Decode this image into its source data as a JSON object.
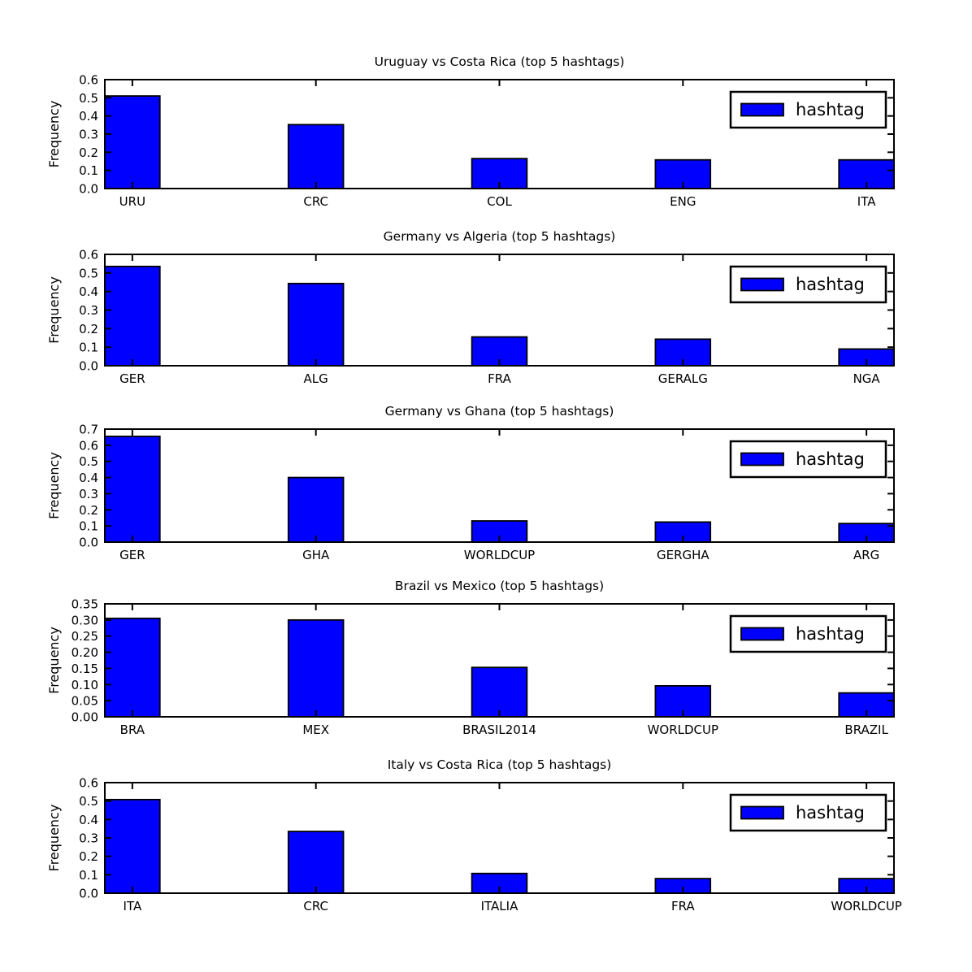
{
  "figure": {
    "background": "#ffffff",
    "bar_color": "#0000ff",
    "edge_color": "#000000"
  },
  "chart_data": [
    {
      "type": "bar",
      "title": "Uruguay vs Costa Rica (top 5 hashtags)",
      "categories": [
        "URU",
        "CRC",
        "COL",
        "ENG",
        "ITA"
      ],
      "values": [
        0.51,
        0.352,
        0.165,
        0.158,
        0.158
      ],
      "xlabel": "",
      "ylabel": "Frequency",
      "ylim": [
        0,
        0.6
      ],
      "yticks": [
        0.0,
        0.1,
        0.2,
        0.3,
        0.4,
        0.5,
        0.6
      ],
      "ytick_labels": [
        "0.0",
        "0.1",
        "0.2",
        "0.3",
        "0.4",
        "0.5",
        "0.6"
      ],
      "legend": {
        "label": "hashtag",
        "position": "upper right"
      },
      "grid": false
    },
    {
      "type": "bar",
      "title": "Germany vs Algeria (top 5 hashtags)",
      "categories": [
        "GER",
        "ALG",
        "FRA",
        "GERALG",
        "NGA"
      ],
      "values": [
        0.535,
        0.443,
        0.155,
        0.143,
        0.09
      ],
      "xlabel": "",
      "ylabel": "Frequency",
      "ylim": [
        0,
        0.6
      ],
      "yticks": [
        0.0,
        0.1,
        0.2,
        0.3,
        0.4,
        0.5,
        0.6
      ],
      "ytick_labels": [
        "0.0",
        "0.1",
        "0.2",
        "0.3",
        "0.4",
        "0.5",
        "0.6"
      ],
      "legend": {
        "label": "hashtag",
        "position": "upper right"
      },
      "grid": false
    },
    {
      "type": "bar",
      "title": "Germany vs Ghana (top 5 hashtags)",
      "categories": [
        "GER",
        "GHA",
        "WORLDCUP",
        "GERGHA",
        "ARG"
      ],
      "values": [
        0.655,
        0.4,
        0.131,
        0.124,
        0.115
      ],
      "xlabel": "",
      "ylabel": "Frequency",
      "ylim": [
        0,
        0.7
      ],
      "yticks": [
        0.0,
        0.1,
        0.2,
        0.3,
        0.4,
        0.5,
        0.6,
        0.7
      ],
      "ytick_labels": [
        "0.0",
        "0.1",
        "0.2",
        "0.3",
        "0.4",
        "0.5",
        "0.6",
        "0.7"
      ],
      "legend": {
        "label": "hashtag",
        "position": "upper right"
      },
      "grid": false
    },
    {
      "type": "bar",
      "title": "Brazil vs Mexico (top 5 hashtags)",
      "categories": [
        "BRA",
        "MEX",
        "BRASIL2014",
        "WORLDCUP",
        "BRAZIL"
      ],
      "values": [
        0.305,
        0.3,
        0.153,
        0.096,
        0.074
      ],
      "xlabel": "",
      "ylabel": "Frequency",
      "ylim": [
        0,
        0.35
      ],
      "yticks": [
        0.0,
        0.05,
        0.1,
        0.15,
        0.2,
        0.25,
        0.3,
        0.35
      ],
      "ytick_labels": [
        "0.00",
        "0.05",
        "0.10",
        "0.15",
        "0.20",
        "0.25",
        "0.30",
        "0.35"
      ],
      "legend": {
        "label": "hashtag",
        "position": "upper right"
      },
      "grid": false
    },
    {
      "type": "bar",
      "title": "Italy vs Costa Rica (top 5 hashtags)",
      "categories": [
        "ITA",
        "CRC",
        "ITALIA",
        "FRA",
        "WORLDCUP"
      ],
      "values": [
        0.508,
        0.335,
        0.107,
        0.079,
        0.079
      ],
      "xlabel": "",
      "ylabel": "Frequency",
      "ylim": [
        0,
        0.6
      ],
      "yticks": [
        0.0,
        0.1,
        0.2,
        0.3,
        0.4,
        0.5,
        0.6
      ],
      "ytick_labels": [
        "0.0",
        "0.1",
        "0.2",
        "0.3",
        "0.4",
        "0.5",
        "0.6"
      ],
      "legend": {
        "label": "hashtag",
        "position": "upper right"
      },
      "grid": false
    }
  ]
}
